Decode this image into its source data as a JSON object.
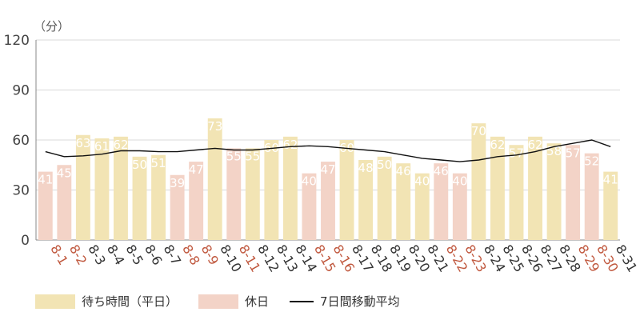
{
  "chart_data": {
    "type": "bar",
    "unit_label": "（分）",
    "categories": [
      "8-1",
      "8-2",
      "8-3",
      "8-4",
      "8-5",
      "8-6",
      "8-7",
      "8-8",
      "8-9",
      "8-10",
      "8-11",
      "8-12",
      "8-13",
      "8-14",
      "8-15",
      "8-16",
      "8-17",
      "8-18",
      "8-19",
      "8-20",
      "8-21",
      "8-22",
      "8-23",
      "8-24",
      "8-25",
      "8-26",
      "8-27",
      "8-28",
      "8-29",
      "8-30",
      "8-31"
    ],
    "holidays": [
      "8-1",
      "8-2",
      "8-8",
      "8-9",
      "8-11",
      "8-15",
      "8-16",
      "8-22",
      "8-23",
      "8-29",
      "8-30"
    ],
    "series": [
      {
        "name": "待ち時間（平日）",
        "type": "bar",
        "color": "#f2e4b4",
        "values": [
          41,
          45,
          63,
          61,
          62,
          50,
          51,
          39,
          47,
          73,
          55,
          55,
          60,
          62,
          40,
          47,
          60,
          48,
          50,
          46,
          40,
          46,
          40,
          70,
          62,
          57,
          62,
          58,
          57,
          52,
          41
        ]
      },
      {
        "name": "休日",
        "type": "bar",
        "color": "#f3d3c7"
      },
      {
        "name": "7日間移動平均",
        "type": "line",
        "color": "#111111",
        "values": [
          53,
          50,
          50.5,
          51.5,
          53.5,
          53.5,
          53,
          53,
          54,
          55,
          54,
          54,
          55,
          56,
          56.5,
          56,
          55,
          54,
          53,
          51,
          49,
          48,
          47,
          48,
          50,
          51,
          53,
          56,
          58,
          60,
          56
        ]
      }
    ],
    "yticks": [
      0,
      30,
      60,
      90,
      120
    ],
    "ylim": [
      0,
      120
    ],
    "grid": true,
    "label_color": "#ffffff",
    "holiday_tick_color": "#c0583e",
    "tick_color": "#333333",
    "legend_position": "bottom-left"
  }
}
